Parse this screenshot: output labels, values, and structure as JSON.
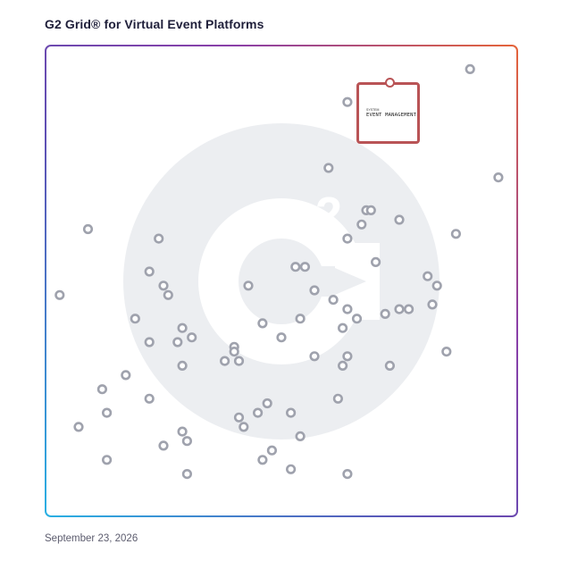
{
  "header": {
    "title": "G2 Grid® for Virtual Event Platforms"
  },
  "footer": {
    "date": "September 23, 2026"
  },
  "highlight": {
    "brand_small": "SYSTEM",
    "name": "EVENT MANAGEMENT",
    "x": 8.6,
    "y": 8.8
  },
  "colors": {
    "marker": "#9fa2ad",
    "highlight": "#b95456",
    "watermark": "#eceef1",
    "frame_gradient": [
      "#2ab0e3",
      "#5e4fb4",
      "#8a3fa8",
      "#e5643a"
    ]
  },
  "chart_data": {
    "type": "scatter",
    "title": "G2 Grid® for Virtual Event Platforms",
    "xlabel": "",
    "ylabel": "",
    "xlim": [
      0,
      10
    ],
    "ylim": [
      0,
      10
    ],
    "grid": true,
    "points": [
      {
        "x": 9.0,
        "y": 9.5
      },
      {
        "x": 6.4,
        "y": 8.8
      },
      {
        "x": 6.0,
        "y": 7.4
      },
      {
        "x": 9.6,
        "y": 7.2
      },
      {
        "x": 6.8,
        "y": 6.5
      },
      {
        "x": 6.9,
        "y": 6.5
      },
      {
        "x": 6.7,
        "y": 6.2
      },
      {
        "x": 7.5,
        "y": 6.3
      },
      {
        "x": 6.4,
        "y": 5.9
      },
      {
        "x": 8.7,
        "y": 6.0
      },
      {
        "x": 0.9,
        "y": 6.1
      },
      {
        "x": 2.4,
        "y": 5.9
      },
      {
        "x": 7.0,
        "y": 5.4
      },
      {
        "x": 5.3,
        "y": 5.3
      },
      {
        "x": 5.5,
        "y": 5.3
      },
      {
        "x": 8.1,
        "y": 5.1
      },
      {
        "x": 8.3,
        "y": 4.9
      },
      {
        "x": 2.2,
        "y": 5.2
      },
      {
        "x": 2.5,
        "y": 4.9
      },
      {
        "x": 2.6,
        "y": 4.7
      },
      {
        "x": 4.3,
        "y": 4.9
      },
      {
        "x": 5.7,
        "y": 4.8
      },
      {
        "x": 0.3,
        "y": 4.7
      },
      {
        "x": 6.1,
        "y": 4.6
      },
      {
        "x": 6.4,
        "y": 4.4
      },
      {
        "x": 6.6,
        "y": 4.2
      },
      {
        "x": 8.2,
        "y": 4.5
      },
      {
        "x": 7.2,
        "y": 4.3
      },
      {
        "x": 7.5,
        "y": 4.4
      },
      {
        "x": 7.7,
        "y": 4.4
      },
      {
        "x": 1.9,
        "y": 4.2
      },
      {
        "x": 4.6,
        "y": 4.1
      },
      {
        "x": 5.4,
        "y": 4.2
      },
      {
        "x": 6.3,
        "y": 4.0
      },
      {
        "x": 2.9,
        "y": 4.0
      },
      {
        "x": 3.1,
        "y": 3.8
      },
      {
        "x": 2.2,
        "y": 3.7
      },
      {
        "x": 2.8,
        "y": 3.7
      },
      {
        "x": 5.0,
        "y": 3.8
      },
      {
        "x": 4.0,
        "y": 3.6
      },
      {
        "x": 4.0,
        "y": 3.5
      },
      {
        "x": 3.8,
        "y": 3.3
      },
      {
        "x": 4.1,
        "y": 3.3
      },
      {
        "x": 5.7,
        "y": 3.4
      },
      {
        "x": 6.4,
        "y": 3.4
      },
      {
        "x": 6.3,
        "y": 3.2
      },
      {
        "x": 7.3,
        "y": 3.2
      },
      {
        "x": 8.5,
        "y": 3.5
      },
      {
        "x": 2.9,
        "y": 3.2
      },
      {
        "x": 1.7,
        "y": 3.0
      },
      {
        "x": 1.2,
        "y": 2.7
      },
      {
        "x": 2.2,
        "y": 2.5
      },
      {
        "x": 6.2,
        "y": 2.5
      },
      {
        "x": 4.7,
        "y": 2.4
      },
      {
        "x": 4.5,
        "y": 2.2
      },
      {
        "x": 5.2,
        "y": 2.2
      },
      {
        "x": 1.3,
        "y": 2.2
      },
      {
        "x": 4.1,
        "y": 2.1
      },
      {
        "x": 0.7,
        "y": 1.9
      },
      {
        "x": 4.2,
        "y": 1.9
      },
      {
        "x": 2.9,
        "y": 1.8
      },
      {
        "x": 3.0,
        "y": 1.6
      },
      {
        "x": 5.4,
        "y": 1.7
      },
      {
        "x": 2.5,
        "y": 1.5
      },
      {
        "x": 4.8,
        "y": 1.4
      },
      {
        "x": 1.3,
        "y": 1.2
      },
      {
        "x": 4.6,
        "y": 1.2
      },
      {
        "x": 5.2,
        "y": 1.0
      },
      {
        "x": 3.0,
        "y": 0.9
      },
      {
        "x": 6.4,
        "y": 0.9
      }
    ]
  }
}
